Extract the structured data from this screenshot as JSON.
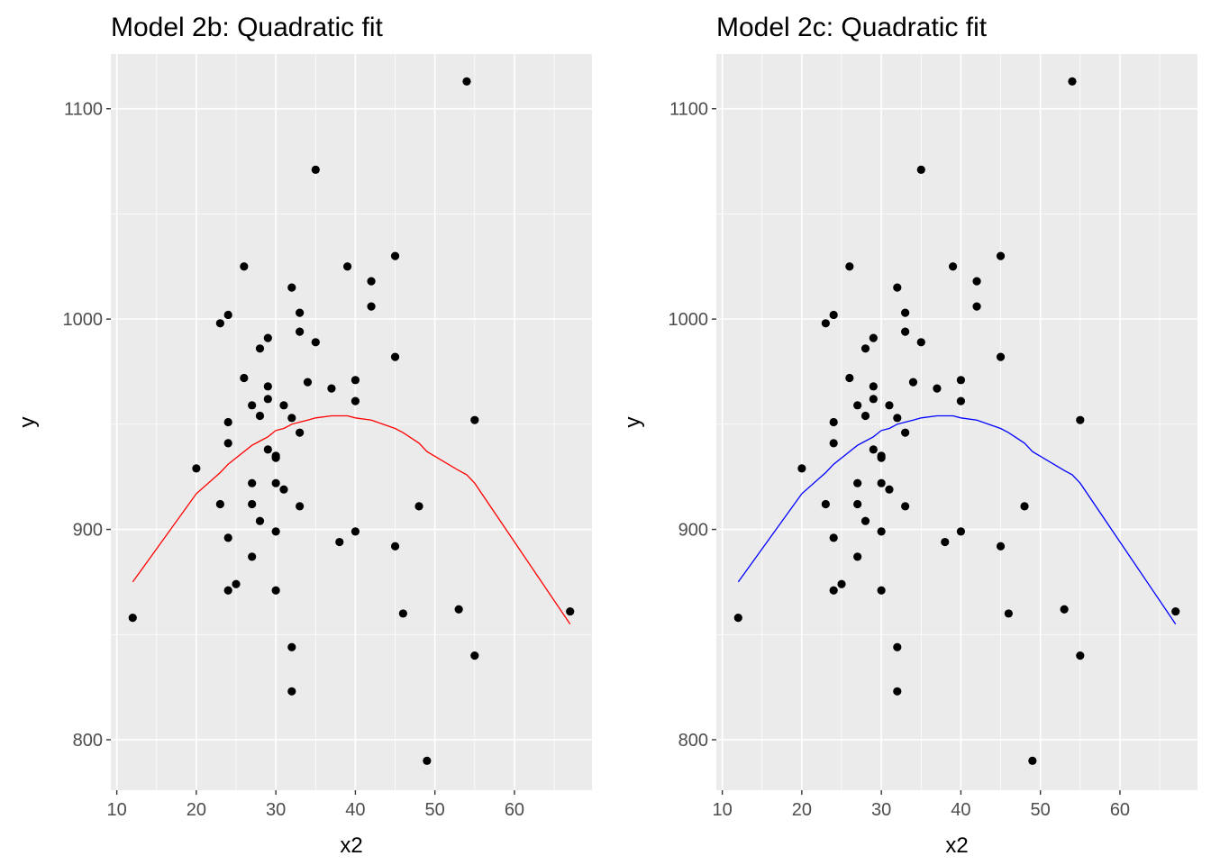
{
  "chart_data": [
    {
      "type": "scatter",
      "title": "Model 2b: Quadratic fit",
      "xlabel": "x2",
      "ylabel": "y",
      "xlim": [
        9.25,
        69.75
      ],
      "ylim": [
        776,
        1126
      ],
      "xticks": [
        10,
        20,
        30,
        40,
        50,
        60
      ],
      "yticks": [
        800,
        900,
        1000,
        1100
      ],
      "grid": true,
      "fit_color": "#FF0000",
      "points": [
        [
          12,
          858
        ],
        [
          20,
          929
        ],
        [
          23,
          998
        ],
        [
          23,
          912
        ],
        [
          24,
          1002
        ],
        [
          24,
          951
        ],
        [
          24,
          941
        ],
        [
          24,
          896
        ],
        [
          24,
          871
        ],
        [
          25,
          874
        ],
        [
          26,
          1025
        ],
        [
          26,
          972
        ],
        [
          27,
          959
        ],
        [
          27,
          922
        ],
        [
          27,
          912
        ],
        [
          27,
          887
        ],
        [
          28,
          986
        ],
        [
          28,
          954
        ],
        [
          28,
          904
        ],
        [
          29,
          991
        ],
        [
          29,
          968
        ],
        [
          29,
          962
        ],
        [
          29,
          938
        ],
        [
          30,
          935
        ],
        [
          30,
          934
        ],
        [
          30,
          922
        ],
        [
          30,
          899
        ],
        [
          30,
          871
        ],
        [
          31,
          959
        ],
        [
          31,
          919
        ],
        [
          32,
          1015
        ],
        [
          32,
          953
        ],
        [
          32,
          844
        ],
        [
          32,
          823
        ],
        [
          33,
          1003
        ],
        [
          33,
          994
        ],
        [
          33,
          946
        ],
        [
          33,
          911
        ],
        [
          34,
          970
        ],
        [
          35,
          1071
        ],
        [
          35,
          989
        ],
        [
          37,
          967
        ],
        [
          38,
          894
        ],
        [
          39,
          1025
        ],
        [
          40,
          971
        ],
        [
          40,
          961
        ],
        [
          40,
          899
        ],
        [
          42,
          1018
        ],
        [
          42,
          1006
        ],
        [
          45,
          1030
        ],
        [
          45,
          982
        ],
        [
          45,
          892
        ],
        [
          46,
          860
        ],
        [
          48,
          911
        ],
        [
          49,
          790
        ],
        [
          53,
          862
        ],
        [
          54,
          1113
        ],
        [
          55,
          952
        ],
        [
          55,
          840
        ],
        [
          67,
          861
        ]
      ],
      "fit_line": [
        [
          12,
          875
        ],
        [
          20,
          917
        ],
        [
          23,
          927
        ],
        [
          24,
          931
        ],
        [
          25,
          934
        ],
        [
          26,
          937
        ],
        [
          27,
          940
        ],
        [
          28,
          942
        ],
        [
          29,
          944
        ],
        [
          30,
          947
        ],
        [
          31,
          948
        ],
        [
          32,
          950
        ],
        [
          33,
          951
        ],
        [
          34,
          952
        ],
        [
          35,
          953
        ],
        [
          37,
          954
        ],
        [
          38,
          954
        ],
        [
          39,
          954
        ],
        [
          40,
          953
        ],
        [
          42,
          952
        ],
        [
          45,
          948
        ],
        [
          46,
          946
        ],
        [
          48,
          941
        ],
        [
          49,
          937
        ],
        [
          53,
          928
        ],
        [
          54,
          926
        ],
        [
          55,
          922
        ],
        [
          67,
          855
        ]
      ]
    },
    {
      "type": "scatter",
      "title": "Model 2c: Quadratic fit",
      "xlabel": "x2",
      "ylabel": "y",
      "xlim": [
        9.25,
        69.75
      ],
      "ylim": [
        776,
        1126
      ],
      "xticks": [
        10,
        20,
        30,
        40,
        50,
        60
      ],
      "yticks": [
        800,
        900,
        1000,
        1100
      ],
      "grid": true,
      "fit_color": "#0000FF",
      "points": [
        [
          12,
          858
        ],
        [
          20,
          929
        ],
        [
          23,
          998
        ],
        [
          23,
          912
        ],
        [
          24,
          1002
        ],
        [
          24,
          951
        ],
        [
          24,
          941
        ],
        [
          24,
          896
        ],
        [
          24,
          871
        ],
        [
          25,
          874
        ],
        [
          26,
          1025
        ],
        [
          26,
          972
        ],
        [
          27,
          959
        ],
        [
          27,
          922
        ],
        [
          27,
          912
        ],
        [
          27,
          887
        ],
        [
          28,
          986
        ],
        [
          28,
          954
        ],
        [
          28,
          904
        ],
        [
          29,
          991
        ],
        [
          29,
          968
        ],
        [
          29,
          962
        ],
        [
          29,
          938
        ],
        [
          30,
          935
        ],
        [
          30,
          934
        ],
        [
          30,
          922
        ],
        [
          30,
          899
        ],
        [
          30,
          871
        ],
        [
          31,
          959
        ],
        [
          31,
          919
        ],
        [
          32,
          1015
        ],
        [
          32,
          953
        ],
        [
          32,
          844
        ],
        [
          32,
          823
        ],
        [
          33,
          1003
        ],
        [
          33,
          994
        ],
        [
          33,
          946
        ],
        [
          33,
          911
        ],
        [
          34,
          970
        ],
        [
          35,
          1071
        ],
        [
          35,
          989
        ],
        [
          37,
          967
        ],
        [
          38,
          894
        ],
        [
          39,
          1025
        ],
        [
          40,
          971
        ],
        [
          40,
          961
        ],
        [
          40,
          899
        ],
        [
          42,
          1018
        ],
        [
          42,
          1006
        ],
        [
          45,
          1030
        ],
        [
          45,
          982
        ],
        [
          45,
          892
        ],
        [
          46,
          860
        ],
        [
          48,
          911
        ],
        [
          49,
          790
        ],
        [
          53,
          862
        ],
        [
          54,
          1113
        ],
        [
          55,
          952
        ],
        [
          55,
          840
        ],
        [
          67,
          861
        ]
      ],
      "fit_line": [
        [
          12,
          875
        ],
        [
          20,
          917
        ],
        [
          23,
          927
        ],
        [
          24,
          931
        ],
        [
          25,
          934
        ],
        [
          26,
          937
        ],
        [
          27,
          940
        ],
        [
          28,
          942
        ],
        [
          29,
          944
        ],
        [
          30,
          947
        ],
        [
          31,
          948
        ],
        [
          32,
          950
        ],
        [
          33,
          951
        ],
        [
          34,
          952
        ],
        [
          35,
          953
        ],
        [
          37,
          954
        ],
        [
          38,
          954
        ],
        [
          39,
          954
        ],
        [
          40,
          953
        ],
        [
          42,
          952
        ],
        [
          45,
          948
        ],
        [
          46,
          946
        ],
        [
          48,
          941
        ],
        [
          49,
          937
        ],
        [
          53,
          928
        ],
        [
          54,
          926
        ],
        [
          55,
          922
        ],
        [
          67,
          855
        ]
      ]
    }
  ]
}
